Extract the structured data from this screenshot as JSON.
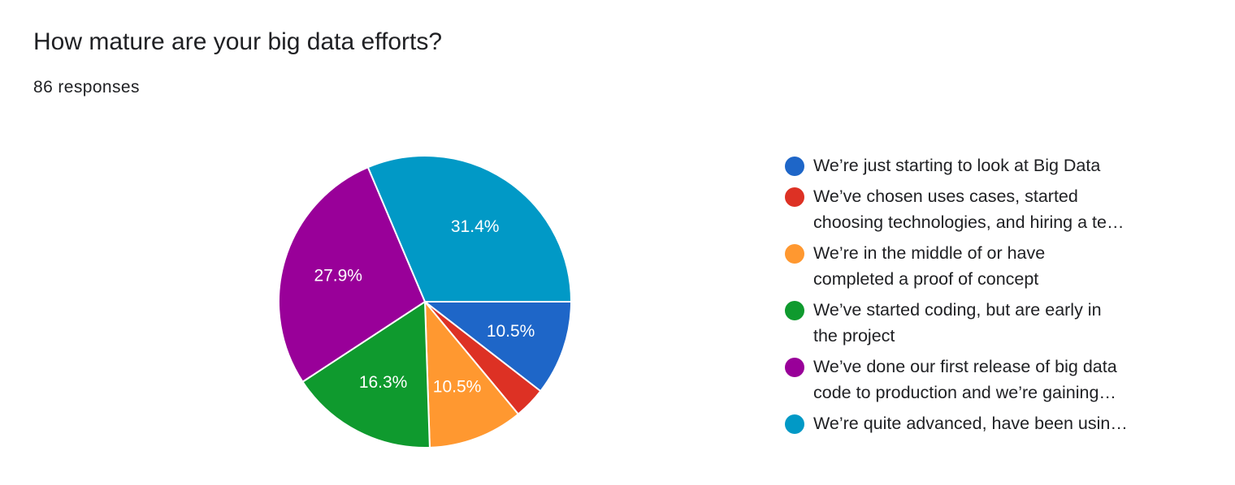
{
  "question": {
    "title": "How mature are your big data efforts?",
    "responses": "86 responses"
  },
  "chart_data": {
    "type": "pie",
    "start_angle_deg": 90,
    "direction": "clockwise",
    "slices": [
      {
        "label_lines": [
          "We’re just starting to look at Big Data"
        ],
        "value": 10.5,
        "display": "10.5%",
        "color": "#1e66c8"
      },
      {
        "label_lines": [
          "We’ve chosen uses cases, started",
          "choosing technologies, and hiring a te…"
        ],
        "value": 3.5,
        "display": "",
        "color": "#dd3124"
      },
      {
        "label_lines": [
          "We’re in the middle of or have",
          "completed a proof of concept"
        ],
        "value": 10.5,
        "display": "10.5%",
        "color": "#ff9830"
      },
      {
        "label_lines": [
          "We’ve started coding, but are early in",
          "the project"
        ],
        "value": 16.3,
        "display": "16.3%",
        "color": "#0f9a2e"
      },
      {
        "label_lines": [
          "We’ve done our first release of big data",
          "code to production and we’re gaining…"
        ],
        "value": 27.9,
        "display": "27.9%",
        "color": "#990099"
      },
      {
        "label_lines": [
          "We’re quite advanced, have been usin…"
        ],
        "value": 31.4,
        "display": "31.4%",
        "color": "#0199c6"
      }
    ]
  }
}
